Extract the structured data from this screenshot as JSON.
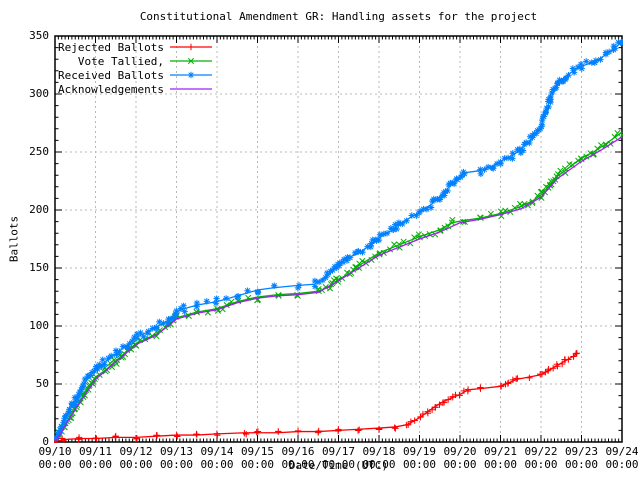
{
  "title": "Constitutional Amendment GR: Handling assets for the project",
  "chart_data": {
    "type": "line",
    "title": "Constitutional Amendment GR: Handling assets for the project",
    "xlabel": "Date/Time (UTC)",
    "ylabel": "Ballots",
    "grid": true,
    "legend_position": "top-left",
    "background": "#ffffff",
    "grid_color": "#b8b8b8",
    "xlim": [
      0,
      14
    ],
    "ylim": [
      0,
      350
    ],
    "x_unit": "days since 09/10 00:00 UTC",
    "y_ticks": [
      0,
      50,
      100,
      150,
      200,
      250,
      300,
      350
    ],
    "x_ticks": [
      {
        "date": "09/10",
        "time": "00:00"
      },
      {
        "date": "09/11",
        "time": "00:00"
      },
      {
        "date": "09/12",
        "time": "00:00"
      },
      {
        "date": "09/13",
        "time": "00:00"
      },
      {
        "date": "09/14",
        "time": "00:00"
      },
      {
        "date": "09/15",
        "time": "00:00"
      },
      {
        "date": "09/16",
        "time": "00:00"
      },
      {
        "date": "09/17",
        "time": "00:00"
      },
      {
        "date": "09/18",
        "time": "00:00"
      },
      {
        "date": "09/19",
        "time": "00:00"
      },
      {
        "date": "09/20",
        "time": "00:00"
      },
      {
        "date": "09/21",
        "time": "00:00"
      },
      {
        "date": "09/22",
        "time": "00:00"
      },
      {
        "date": "09/23",
        "time": "00:00"
      },
      {
        "date": "09/24",
        "time": "00:00"
      }
    ],
    "series": [
      {
        "name": "Rejected Ballots",
        "color": "#ff0000",
        "marker": "plus",
        "points": [
          [
            0,
            0
          ],
          [
            0.2,
            2
          ],
          [
            0.6,
            3
          ],
          [
            1,
            3
          ],
          [
            1.5,
            4
          ],
          [
            2,
            4
          ],
          [
            2.5,
            5
          ],
          [
            3,
            6
          ],
          [
            3.5,
            6
          ],
          [
            4,
            7
          ],
          [
            4.7,
            8
          ],
          [
            5,
            8
          ],
          [
            5.5,
            8
          ],
          [
            6,
            9
          ],
          [
            6.5,
            9
          ],
          [
            7,
            10
          ],
          [
            7.5,
            11
          ],
          [
            8,
            12
          ],
          [
            8.4,
            13
          ],
          [
            8.7,
            15
          ],
          [
            9,
            21
          ],
          [
            9.2,
            26
          ],
          [
            9.4,
            31
          ],
          [
            9.6,
            35
          ],
          [
            9.8,
            38
          ],
          [
            10,
            41
          ],
          [
            10.2,
            45
          ],
          [
            10.5,
            46
          ],
          [
            11,
            48
          ],
          [
            11.2,
            51
          ],
          [
            11.4,
            54
          ],
          [
            12,
            58
          ],
          [
            12.2,
            62
          ],
          [
            12.4,
            66
          ],
          [
            12.6,
            70
          ],
          [
            12.8,
            74
          ],
          [
            12.9,
            77
          ]
        ]
      },
      {
        "name": "Vote Tallied,",
        "color": "#00b000",
        "marker": "cross",
        "points": [
          [
            0,
            0
          ],
          [
            0.1,
            6
          ],
          [
            0.25,
            15
          ],
          [
            0.4,
            23
          ],
          [
            0.5,
            29
          ],
          [
            0.7,
            40
          ],
          [
            0.85,
            48
          ],
          [
            1,
            56
          ],
          [
            1.25,
            62
          ],
          [
            1.5,
            70
          ],
          [
            2,
            85
          ],
          [
            2.5,
            93
          ],
          [
            2.8,
            100
          ],
          [
            3,
            107
          ],
          [
            3.3,
            110
          ],
          [
            3.5,
            112
          ],
          [
            4,
            115
          ],
          [
            4.5,
            121
          ],
          [
            5,
            125
          ],
          [
            5.5,
            127
          ],
          [
            6,
            128
          ],
          [
            6.5,
            130
          ],
          [
            6.8,
            134
          ],
          [
            7,
            140
          ],
          [
            7.3,
            146
          ],
          [
            7.5,
            152
          ],
          [
            8,
            163
          ],
          [
            8.5,
            170
          ],
          [
            9,
            177
          ],
          [
            9.5,
            183
          ],
          [
            9.8,
            189
          ],
          [
            10.1,
            191
          ],
          [
            10.5,
            193
          ],
          [
            11,
            197
          ],
          [
            11.5,
            203
          ],
          [
            11.8,
            208
          ],
          [
            12,
            213
          ],
          [
            12.2,
            221
          ],
          [
            12.4,
            229
          ],
          [
            12.6,
            234
          ],
          [
            13,
            245
          ],
          [
            13.3,
            250
          ],
          [
            13.6,
            257
          ],
          [
            14,
            267
          ]
        ]
      },
      {
        "name": "Received Ballots",
        "color": "#0080ff",
        "marker": "asterisk",
        "points": [
          [
            0,
            0
          ],
          [
            0.08,
            6
          ],
          [
            0.15,
            12
          ],
          [
            0.25,
            20
          ],
          [
            0.35,
            27
          ],
          [
            0.5,
            36
          ],
          [
            0.65,
            46
          ],
          [
            0.8,
            54
          ],
          [
            1,
            62
          ],
          [
            1.2,
            68
          ],
          [
            1.5,
            76
          ],
          [
            1.8,
            84
          ],
          [
            2,
            90
          ],
          [
            2.3,
            95
          ],
          [
            2.5,
            99
          ],
          [
            2.8,
            105
          ],
          [
            3,
            112
          ],
          [
            3.2,
            115
          ],
          [
            3.5,
            118
          ],
          [
            4,
            121
          ],
          [
            4.5,
            126
          ],
          [
            5,
            131
          ],
          [
            5.4,
            133
          ],
          [
            6,
            135
          ],
          [
            6.4,
            136
          ],
          [
            6.7,
            143
          ],
          [
            7,
            152
          ],
          [
            7.2,
            158
          ],
          [
            7.5,
            163
          ],
          [
            7.8,
            170
          ],
          [
            8,
            176
          ],
          [
            8.3,
            182
          ],
          [
            8.5,
            188
          ],
          [
            9,
            198
          ],
          [
            9.3,
            205
          ],
          [
            9.6,
            215
          ],
          [
            9.9,
            226
          ],
          [
            10.1,
            232
          ],
          [
            10.5,
            234
          ],
          [
            10.8,
            238
          ],
          [
            11,
            242
          ],
          [
            11.3,
            247
          ],
          [
            11.5,
            252
          ],
          [
            11.8,
            262
          ],
          [
            12,
            272
          ],
          [
            12.1,
            283
          ],
          [
            12.25,
            297
          ],
          [
            12.4,
            308
          ],
          [
            12.6,
            315
          ],
          [
            12.8,
            320
          ],
          [
            13,
            324
          ],
          [
            13.35,
            328
          ],
          [
            13.6,
            334
          ],
          [
            13.8,
            339
          ],
          [
            14,
            345
          ]
        ]
      },
      {
        "name": "Acknowledgements",
        "color": "#a020f0",
        "marker": "none",
        "points": [
          [
            0,
            0
          ],
          [
            0.25,
            14
          ],
          [
            0.5,
            28
          ],
          [
            1,
            54
          ],
          [
            1.5,
            69
          ],
          [
            2,
            84
          ],
          [
            2.5,
            92
          ],
          [
            3,
            106
          ],
          [
            3.5,
            111
          ],
          [
            4,
            114
          ],
          [
            4.5,
            120
          ],
          [
            5,
            124
          ],
          [
            5.5,
            126
          ],
          [
            6,
            127
          ],
          [
            6.5,
            129
          ],
          [
            7,
            139
          ],
          [
            7.5,
            150
          ],
          [
            8,
            161
          ],
          [
            8.5,
            168
          ],
          [
            9,
            175
          ],
          [
            9.5,
            181
          ],
          [
            10,
            189
          ],
          [
            10.5,
            192
          ],
          [
            11,
            196
          ],
          [
            11.5,
            201
          ],
          [
            12,
            211
          ],
          [
            12.4,
            227
          ],
          [
            12.6,
            232
          ],
          [
            13,
            242
          ],
          [
            13.5,
            252
          ],
          [
            14,
            263
          ]
        ]
      }
    ]
  }
}
